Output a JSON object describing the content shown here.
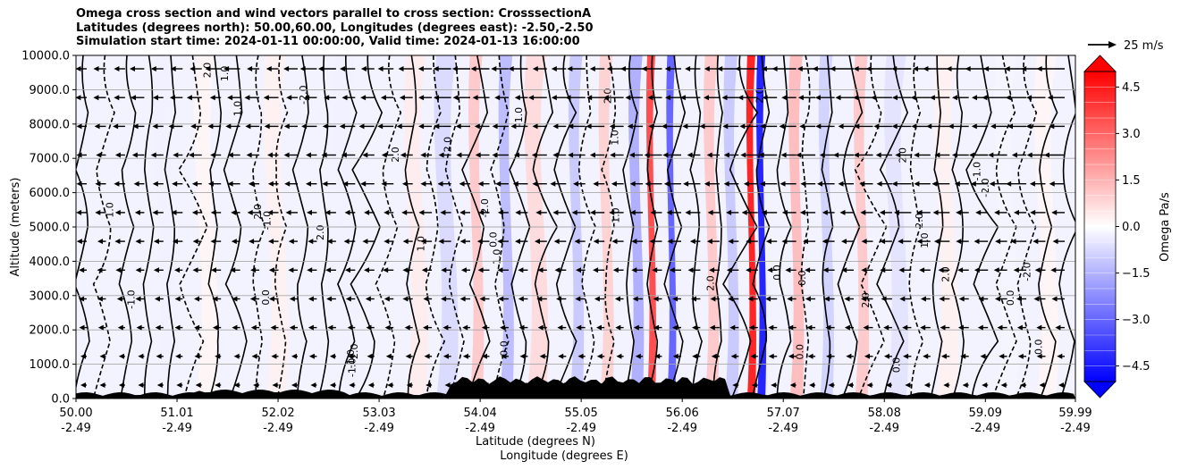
{
  "title_lines": [
    "Omega cross section and wind vectors parallel to cross section: CrosssectionA",
    "Latitudes (degrees north): 50.00,60.00, Longitudes (degrees east): -2.50,-2.50",
    "Simulation start time: 2024-01-11 00:00:00, Valid time: 2024-01-13 16:00:00"
  ],
  "chart_data": {
    "type": "heatmap",
    "title": "Omega cross section and wind vectors parallel to cross section: CrosssectionA",
    "ylabel": "Altitude (meters)",
    "xlabel_lines": [
      "Latitude (degrees N)",
      "Longitude (degrees E)"
    ],
    "ylim": [
      0,
      10000
    ],
    "xlim": [
      50.0,
      59.99
    ],
    "y_ticks": [
      "0.0",
      "1000.0",
      "2000.0",
      "3000.0",
      "4000.0",
      "5000.0",
      "6000.0",
      "7000.0",
      "8000.0",
      "9000.0",
      "10000.0"
    ],
    "y_tick_values": [
      0,
      1000,
      2000,
      3000,
      4000,
      5000,
      6000,
      7000,
      8000,
      9000,
      10000
    ],
    "x_tick_values": [
      50.0,
      51.01,
      52.02,
      53.03,
      54.04,
      55.05,
      56.06,
      57.07,
      58.08,
      59.09,
      59.99
    ],
    "x_ticks_lat": [
      "50.00",
      "51.01",
      "52.02",
      "53.03",
      "54.04",
      "55.05",
      "56.06",
      "57.07",
      "58.08",
      "59.09",
      "59.99"
    ],
    "x_ticks_lon": [
      "-2.49",
      "-2.49",
      "-2.49",
      "-2.49",
      "-2.49",
      "-2.49",
      "-2.49",
      "-2.49",
      "-2.49",
      "-2.49",
      "-2.49"
    ],
    "grid": "horizontal",
    "colorbar": {
      "label": "Omega Pa/s",
      "range": [
        -5.0,
        5.0
      ],
      "ticks": [
        "4.5",
        "3.0",
        "1.5",
        "0.0",
        "−1.5",
        "−3.0",
        "−4.5"
      ],
      "tick_values": [
        4.5,
        3.0,
        1.5,
        0.0,
        -1.5,
        -3.0,
        -4.5
      ],
      "colormap": "bwr",
      "extend": "both"
    },
    "quiver_key": {
      "label": "25 m/s",
      "speed": 25
    },
    "contour_levels_shown": [
      "0.0",
      "1.0",
      "-1.0",
      "2.0",
      "-2.0"
    ],
    "omega_bands": [
      {
        "lat": 50.9,
        "value": -0.3
      },
      {
        "lat": 51.3,
        "value": 0.2
      },
      {
        "lat": 52.0,
        "value": 0.3
      },
      {
        "lat": 52.7,
        "value": -0.3
      },
      {
        "lat": 53.4,
        "value": 0.4
      },
      {
        "lat": 53.7,
        "value": -0.8
      },
      {
        "lat": 54.0,
        "value": 1.2
      },
      {
        "lat": 54.3,
        "value": -1.5
      },
      {
        "lat": 54.6,
        "value": 0.8
      },
      {
        "lat": 55.0,
        "value": -1.2
      },
      {
        "lat": 55.3,
        "value": 1.0
      },
      {
        "lat": 55.6,
        "value": -1.8
      },
      {
        "lat": 55.75,
        "value": 4.0
      },
      {
        "lat": 55.95,
        "value": -3.5
      },
      {
        "lat": 56.35,
        "value": 1.2
      },
      {
        "lat": 56.55,
        "value": -1.2
      },
      {
        "lat": 56.75,
        "value": 5.0
      },
      {
        "lat": 56.85,
        "value": -5.0
      },
      {
        "lat": 57.2,
        "value": 1.5
      },
      {
        "lat": 57.5,
        "value": -1.0
      },
      {
        "lat": 57.85,
        "value": 1.2
      },
      {
        "lat": 58.2,
        "value": -0.6
      },
      {
        "lat": 58.7,
        "value": 0.3
      },
      {
        "lat": 59.3,
        "value": -0.2
      },
      {
        "lat": 59.7,
        "value": 0.2
      }
    ]
  }
}
